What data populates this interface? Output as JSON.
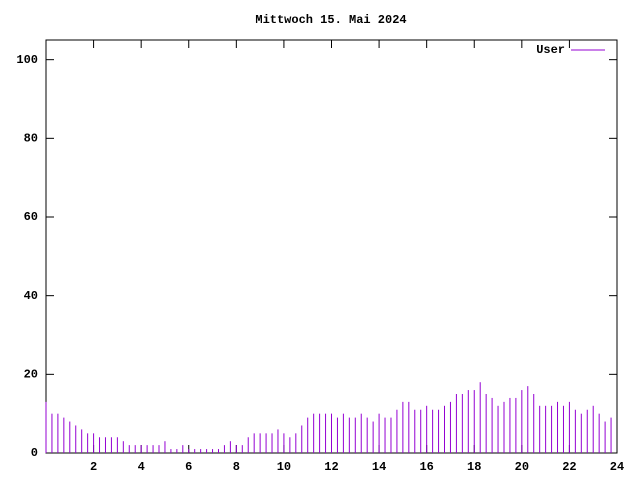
{
  "chart_data": {
    "type": "impulse",
    "title": "Mittwoch 15. Mai 2024",
    "x": [
      0,
      0.25,
      0.5,
      0.75,
      1,
      1.25,
      1.5,
      1.75,
      2,
      2.25,
      2.5,
      2.75,
      3,
      3.25,
      3.5,
      3.75,
      4,
      4.25,
      4.5,
      4.75,
      5,
      5.25,
      5.5,
      5.75,
      6,
      6.25,
      6.5,
      6.75,
      7,
      7.25,
      7.5,
      7.75,
      8,
      8.25,
      8.5,
      8.75,
      9,
      9.25,
      9.5,
      9.75,
      10,
      10.25,
      10.5,
      10.75,
      11,
      11.25,
      11.5,
      11.75,
      12,
      12.25,
      12.5,
      12.75,
      13,
      13.25,
      13.5,
      13.75,
      14,
      14.25,
      14.5,
      14.75,
      15,
      15.25,
      15.5,
      15.75,
      16,
      16.25,
      16.5,
      16.75,
      17,
      17.25,
      17.5,
      17.75,
      18,
      18.25,
      18.5,
      18.75,
      19,
      19.25,
      19.5,
      19.75,
      20,
      20.25,
      20.5,
      20.75,
      21,
      21.25,
      21.5,
      21.75,
      22,
      22.25,
      22.5,
      22.75,
      23,
      23.25,
      23.5,
      23.75
    ],
    "series": [
      {
        "name": "User",
        "color": "#9400d3",
        "values": [
          13,
          10,
          10,
          9,
          8,
          7,
          6,
          5,
          5,
          4,
          4,
          4,
          4,
          3,
          2,
          2,
          2,
          2,
          2,
          2,
          3,
          1,
          1,
          2,
          1,
          1,
          1,
          1,
          1,
          1,
          2,
          3,
          2,
          2,
          4,
          5,
          5,
          5,
          5,
          6,
          5,
          4,
          5,
          7,
          9,
          10,
          10,
          10,
          10,
          9,
          10,
          9,
          9,
          10,
          9,
          8,
          10,
          9,
          9,
          11,
          13,
          13,
          11,
          11,
          12,
          11,
          11,
          12,
          13,
          15,
          15,
          16,
          16,
          18,
          15,
          14,
          12,
          13,
          14,
          14,
          16,
          17,
          15,
          12,
          12,
          12,
          13,
          12,
          13,
          11,
          10,
          11,
          12,
          10,
          8,
          9
        ]
      }
    ],
    "xlim": [
      0,
      24
    ],
    "ylim": [
      0,
      105
    ],
    "xticks": [
      2,
      4,
      6,
      8,
      10,
      12,
      14,
      16,
      18,
      20,
      22,
      24
    ],
    "yticks": [
      0,
      20,
      40,
      60,
      80,
      100
    ],
    "legend": "top-right"
  }
}
